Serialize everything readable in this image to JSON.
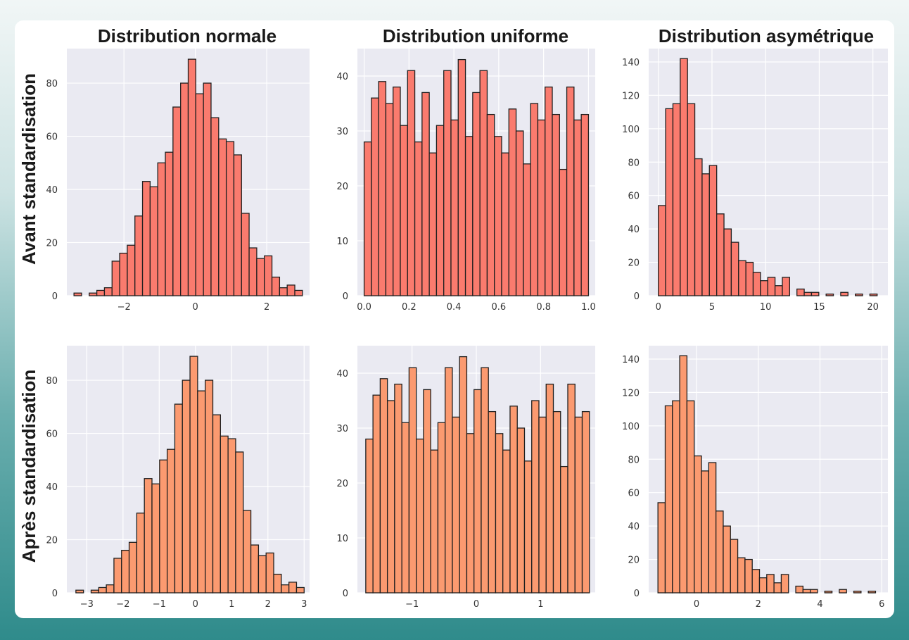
{
  "colors": {
    "panel_bg": "#eaeaf2",
    "grid": "#ffffff",
    "edge": "#1f1f1f",
    "before_fill": "#fa7b6e",
    "after_fill": "#fb9a70"
  },
  "row_labels": [
    "Avant standardisation",
    "Après standardisation"
  ],
  "column_titles": [
    "Distribution normale",
    "Distribution uniforme",
    "Distribution asymétrique"
  ],
  "chart_data": [
    {
      "type": "histogram",
      "title": "Distribution normale",
      "row": "Avant standardisation",
      "xlim": [
        -3.6,
        3.2
      ],
      "ylim": [
        0,
        93
      ],
      "xticks": [
        -2,
        0,
        2
      ],
      "xtick_labels": [
        "−2",
        "0",
        "2"
      ],
      "yticks": [
        0,
        20,
        40,
        60,
        80
      ],
      "ytick_labels": [
        "0",
        "20",
        "40",
        "60",
        "80"
      ],
      "bin_start": -3.4,
      "bin_end": 3.0,
      "counts": [
        1,
        0,
        1,
        2,
        3,
        13,
        16,
        19,
        30,
        43,
        41,
        50,
        54,
        71,
        80,
        89,
        76,
        80,
        67,
        59,
        58,
        53,
        31,
        18,
        14,
        15,
        7,
        3,
        4,
        2
      ],
      "fill": "#fa7b6e"
    },
    {
      "type": "histogram",
      "title": "Distribution uniforme",
      "row": "Avant standardisation",
      "xlim": [
        -0.03,
        1.03
      ],
      "ylim": [
        0,
        45
      ],
      "xticks": [
        0,
        0.2,
        0.4,
        0.6,
        0.8,
        1.0
      ],
      "xtick_labels": [
        "0.0",
        "0.2",
        "0.4",
        "0.6",
        "0.8",
        "1.0"
      ],
      "yticks": [
        0,
        10,
        20,
        30,
        40
      ],
      "ytick_labels": [
        "0",
        "10",
        "20",
        "30",
        "40"
      ],
      "bin_start": 0.0,
      "bin_end": 1.0,
      "counts": [
        28,
        36,
        39,
        35,
        38,
        31,
        41,
        28,
        37,
        26,
        31,
        41,
        32,
        43,
        29,
        37,
        41,
        33,
        29,
        26,
        34,
        30,
        24,
        35,
        32,
        38,
        33,
        23,
        38,
        32,
        33
      ],
      "fill": "#fa7b6e"
    },
    {
      "type": "histogram",
      "title": "Distribution asymétrique",
      "row": "Avant standardisation",
      "xlim": [
        -0.9,
        21.4
      ],
      "ylim": [
        0,
        148
      ],
      "xticks": [
        0,
        5,
        10,
        15,
        20
      ],
      "xtick_labels": [
        "0",
        "5",
        "10",
        "15",
        "20"
      ],
      "yticks": [
        0,
        20,
        40,
        60,
        80,
        100,
        120,
        140
      ],
      "ytick_labels": [
        "0",
        "20",
        "40",
        "60",
        "80",
        "100",
        "120",
        "140"
      ],
      "bin_start": 0.0,
      "bin_end": 20.4,
      "counts": [
        54,
        112,
        115,
        142,
        115,
        82,
        73,
        78,
        49,
        40,
        32,
        21,
        20,
        14,
        9,
        11,
        6,
        11,
        0,
        4,
        2,
        2,
        0,
        1,
        0,
        2,
        0,
        1,
        0,
        1
      ],
      "fill": "#fa7b6e"
    },
    {
      "type": "histogram",
      "title": "Distribution normale",
      "row": "Après standardisation",
      "xlim": [
        -3.55,
        3.15
      ],
      "ylim": [
        0,
        93
      ],
      "xticks": [
        -3,
        -2,
        -1,
        0,
        1,
        2,
        3
      ],
      "xtick_labels": [
        "−3",
        "−2",
        "−1",
        "0",
        "1",
        "2",
        "3"
      ],
      "yticks": [
        0,
        20,
        40,
        60,
        80
      ],
      "ytick_labels": [
        "0",
        "20",
        "40",
        "60",
        "80"
      ],
      "bin_start": -3.3,
      "bin_end": 3.0,
      "counts": [
        1,
        0,
        1,
        2,
        3,
        13,
        16,
        19,
        30,
        43,
        41,
        50,
        54,
        71,
        80,
        89,
        76,
        80,
        67,
        59,
        58,
        53,
        31,
        18,
        14,
        15,
        7,
        3,
        4,
        2
      ],
      "fill": "#fb9a70"
    },
    {
      "type": "histogram",
      "title": "Distribution uniforme",
      "row": "Après standardisation",
      "xlim": [
        -1.85,
        1.85
      ],
      "ylim": [
        0,
        45
      ],
      "xticks": [
        -1,
        0,
        1
      ],
      "xtick_labels": [
        "−1",
        "0",
        "1"
      ],
      "yticks": [
        0,
        10,
        20,
        30,
        40
      ],
      "ytick_labels": [
        "0",
        "10",
        "20",
        "30",
        "40"
      ],
      "bin_start": -1.72,
      "bin_end": 1.76,
      "counts": [
        28,
        36,
        39,
        35,
        38,
        31,
        41,
        28,
        37,
        26,
        31,
        41,
        32,
        43,
        29,
        37,
        41,
        33,
        29,
        26,
        34,
        30,
        24,
        35,
        32,
        38,
        33,
        23,
        38,
        32,
        33
      ],
      "fill": "#fb9a70"
    },
    {
      "type": "histogram",
      "title": "Distribution asymétrique",
      "row": "Après standardisation",
      "xlim": [
        -1.55,
        6.2
      ],
      "ylim": [
        0,
        148
      ],
      "xticks": [
        0,
        2,
        4,
        6
      ],
      "xtick_labels": [
        "0",
        "2",
        "4",
        "6"
      ],
      "yticks": [
        0,
        20,
        40,
        60,
        80,
        100,
        120,
        140
      ],
      "ytick_labels": [
        "0",
        "20",
        "40",
        "60",
        "80",
        "100",
        "120",
        "140"
      ],
      "bin_start": -1.25,
      "bin_end": 5.8,
      "counts": [
        54,
        112,
        115,
        142,
        115,
        82,
        73,
        78,
        49,
        40,
        32,
        21,
        20,
        14,
        9,
        11,
        6,
        11,
        0,
        4,
        2,
        2,
        0,
        1,
        0,
        2,
        0,
        1,
        0,
        1
      ],
      "fill": "#fb9a70"
    }
  ]
}
